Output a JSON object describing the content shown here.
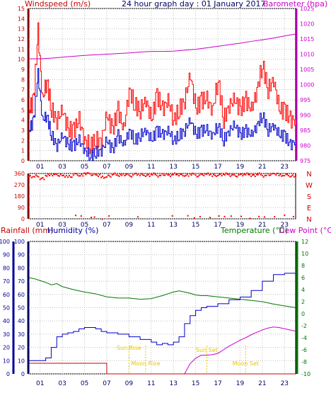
{
  "panel1": {
    "left_label": "Windspeed (m/s)",
    "title": "24 hour graph day : 01 January 2017",
    "right_label": "Barometer (hpa)",
    "left_ticks": [
      "0",
      "1",
      "2",
      "3",
      "4",
      "5",
      "6",
      "7",
      "8",
      "9",
      "10",
      "11",
      "12",
      "13",
      "14",
      "15"
    ],
    "right_ticks": [
      "975",
      "980",
      "985",
      "990",
      "995",
      "1000",
      "1005",
      "1010",
      "1015",
      "1020",
      "1025"
    ],
    "hour_ticks": [
      "01",
      "03",
      "05",
      "07",
      "09",
      "11",
      "13",
      "15",
      "17",
      "19",
      "21",
      "23"
    ]
  },
  "panel2": {
    "left_ticks": [
      "0",
      "90",
      "180",
      "270",
      "360"
    ],
    "compass": [
      "N",
      "W",
      "S",
      "E",
      "N"
    ],
    "hour_ticks": [
      "01",
      "03",
      "05",
      "07",
      "09",
      "11",
      "13",
      "15",
      "17",
      "19",
      "21",
      "23"
    ]
  },
  "panel3": {
    "rain_label": "Rainfall (mm)",
    "hum_label": "Humidity (%)",
    "temp_label": "Temperature (°C)",
    "dew_label": "Dew Point (°C)",
    "rain_ticks": [
      "0",
      "10",
      "20",
      "30",
      "40",
      "50",
      "60",
      "70",
      "80",
      "90",
      "100"
    ],
    "hum_ticks": [
      "0",
      "10",
      "20",
      "30",
      "40",
      "50",
      "60",
      "70",
      "80",
      "90",
      "100"
    ],
    "temp_ticks": [
      "-10",
      "-8",
      "-6",
      "-4",
      "-2",
      "0",
      "2",
      "4",
      "6",
      "8",
      "10",
      "12"
    ],
    "hour_ticks": [
      "01",
      "03",
      "05",
      "07",
      "09",
      "11",
      "13",
      "15",
      "17",
      "19",
      "21",
      "23"
    ],
    "annotations": [
      {
        "text": "Sun Rise",
        "hour": 9.0
      },
      {
        "text": "Moon Rise",
        "hour": 10.5
      },
      {
        "text": "Sun Set",
        "hour": 16.0
      },
      {
        "text": "Moon Set",
        "hour": 19.5
      }
    ]
  },
  "colors": {
    "wind_gust": "#ff0000",
    "wind_avg": "#0000cc",
    "barometer": "#cc00cc",
    "direction": "#ff0000",
    "temperature": "#007700",
    "dew_point": "#cc00cc",
    "humidity": "#0000cc",
    "rainfall": "#cc0000",
    "annotation": "#e6c700",
    "grid": "#c0c0c0"
  },
  "chart_data": [
    {
      "type": "line",
      "title": "24 hour graph day : 01 January 2017",
      "xlabel": "",
      "xlim": [
        0,
        24
      ],
      "ylabel": "Windspeed (m/s)",
      "ylim": [
        0,
        15
      ],
      "y2label": "Barometer (hpa)",
      "y2lim": [
        975,
        1025
      ],
      "series": [
        {
          "name": "Windspeed (m/s)",
          "role": "gust",
          "axis": "y",
          "x": [
            0,
            0.4,
            0.8,
            1.2,
            1.6,
            2,
            2.5,
            3,
            3.5,
            4,
            4.5,
            5,
            5.5,
            6,
            6.5,
            7,
            7.5,
            8,
            8.5,
            9,
            9.5,
            10,
            10.5,
            11,
            11.5,
            12,
            12.5,
            13,
            13.5,
            14,
            14.5,
            15,
            15.5,
            16,
            16.5,
            17,
            17.5,
            18,
            18.5,
            19,
            19.5,
            20,
            20.5,
            21,
            21.5,
            22,
            22.5,
            23,
            23.5,
            24
          ],
          "y": [
            5,
            6,
            12.7,
            6,
            8,
            5,
            4,
            5,
            3,
            3,
            4,
            2,
            1.5,
            2,
            2,
            4.5,
            3,
            5,
            3,
            7,
            5.5,
            5,
            6,
            4,
            6.5,
            5,
            6,
            4,
            5,
            6,
            8.5,
            5,
            6,
            6,
            5,
            8,
            4,
            5.5,
            6,
            5,
            6,
            5,
            7,
            9.5,
            7,
            8,
            5,
            5,
            4,
            4
          ]
        },
        {
          "name": "Windspeed (m/s)",
          "role": "average",
          "axis": "y",
          "x": [
            0,
            0.4,
            0.8,
            1.2,
            1.6,
            2,
            2.5,
            3,
            3.5,
            4,
            4.5,
            5,
            5.5,
            6,
            6.5,
            7,
            7.5,
            8,
            8.5,
            9,
            9.5,
            10,
            10.5,
            11,
            11.5,
            12,
            12.5,
            13,
            13.5,
            14,
            14.5,
            15,
            15.5,
            16,
            16.5,
            17,
            17.5,
            18,
            18.5,
            19,
            19.5,
            20,
            20.5,
            21,
            21.5,
            22,
            22.5,
            23,
            23.5,
            24
          ],
          "y": [
            3,
            4,
            8.5,
            4,
            4.5,
            2.5,
            1.5,
            2.5,
            1.5,
            1.5,
            2,
            1,
            0.5,
            0.8,
            1,
            2,
            1,
            2.5,
            1.5,
            3,
            2,
            2.5,
            3,
            2,
            3,
            2.5,
            3,
            2,
            2.5,
            3,
            4,
            2.5,
            3,
            3,
            2.5,
            3.5,
            2,
            3,
            3.5,
            2.5,
            3,
            2.5,
            3.5,
            4.5,
            3,
            3.5,
            2.5,
            2.5,
            1.5,
            2
          ]
        },
        {
          "name": "Barometer (hpa)",
          "axis": "y2",
          "x": [
            0,
            1,
            2,
            3,
            4,
            5,
            6,
            7,
            8,
            9,
            10,
            11,
            12,
            13,
            14,
            15,
            16,
            17,
            18,
            19,
            20,
            21,
            22,
            23,
            24
          ],
          "y": [
            1008.5,
            1008.5,
            1008.7,
            1009.0,
            1009.3,
            1009.6,
            1009.8,
            1010.0,
            1010.2,
            1010.4,
            1010.7,
            1010.9,
            1010.9,
            1011.0,
            1011.3,
            1011.6,
            1012.1,
            1012.6,
            1013.1,
            1013.6,
            1014.2,
            1014.7,
            1015.3,
            1016.0,
            1016.6
          ]
        }
      ]
    },
    {
      "type": "scatter",
      "xlim": [
        0,
        24
      ],
      "ylim": [
        0,
        360
      ],
      "series": [
        {
          "name": "Wind direction",
          "x": [
            0,
            0.5,
            1,
            1.5,
            2,
            2.5,
            3,
            3.5,
            4,
            4.5,
            5,
            5.5,
            6,
            6.5,
            7,
            7.5,
            8,
            8.5,
            9,
            9.5,
            10,
            10.5,
            11,
            11.5,
            12,
            12.5,
            13,
            13.5,
            14,
            14.5,
            15,
            15.5,
            16,
            16.5,
            17,
            17.5,
            18,
            18.5,
            19,
            19.5,
            20,
            20.5,
            21,
            21.5,
            22,
            22.5,
            23,
            23.5,
            24,
            4.2,
            4.7,
            5.6,
            5.9,
            6.6,
            7.2,
            9.8,
            12.9,
            14.3,
            14.9,
            15.4,
            16.3,
            17.1,
            17.6,
            18.2,
            19.1,
            19.9,
            20.7,
            21.2,
            22.1,
            23.0,
            23.8
          ],
          "y": [
            335,
            340,
            320,
            345,
            350,
            345,
            340,
            335,
            355,
            345,
            360,
            350,
            345,
            330,
            340,
            355,
            345,
            350,
            340,
            355,
            350,
            345,
            355,
            340,
            350,
            345,
            355,
            350,
            345,
            355,
            340,
            350,
            355,
            345,
            350,
            355,
            345,
            340,
            350,
            355,
            345,
            355,
            340,
            350,
            355,
            345,
            350,
            340,
            345,
            20,
            15,
            10,
            20,
            5,
            25,
            10,
            15,
            20,
            10,
            25,
            15,
            20,
            10,
            15,
            20,
            10,
            25,
            15,
            10,
            20,
            15
          ]
        }
      ]
    },
    {
      "type": "line",
      "xlim": [
        0,
        24
      ],
      "ylabel": "Rainfall (mm)",
      "ylim": [
        0,
        100
      ],
      "y2label": "Humidity (%)",
      "y2lim": [
        0,
        100
      ],
      "y3label": "Temperature (°C)",
      "y3lim": [
        -10,
        12
      ],
      "series": [
        {
          "name": "Temperature (°C)",
          "axis": "temp",
          "x": [
            0,
            0.5,
            1,
            1.5,
            2,
            2.5,
            3,
            4,
            5,
            6,
            7,
            8,
            9,
            10,
            11,
            12,
            12.5,
            13,
            13.5,
            14,
            14.5,
            15,
            15.5,
            16,
            17,
            18,
            19,
            20,
            21,
            22,
            23,
            24
          ],
          "y": [
            6.0,
            5.8,
            5.5,
            5.2,
            4.8,
            5.0,
            4.5,
            4.0,
            3.6,
            3.3,
            2.8,
            2.6,
            2.6,
            2.4,
            2.5,
            3.0,
            3.3,
            3.6,
            3.8,
            3.6,
            3.4,
            3.1,
            3.0,
            3.0,
            2.8,
            2.6,
            2.4,
            2.2,
            2.0,
            1.6,
            1.3,
            1.0
          ]
        },
        {
          "name": "Dew Point (°C)",
          "axis": "temp",
          "x": [
            14.0,
            14.5,
            15.0,
            15.5,
            16,
            16.5,
            17,
            17.5,
            18,
            18.5,
            19,
            19.5,
            20,
            20.5,
            21,
            21.5,
            22,
            22.5,
            23,
            23.5,
            24
          ],
          "y": [
            -10.0,
            -8.3,
            -7.4,
            -6.9,
            -6.9,
            -6.8,
            -6.6,
            -6.0,
            -5.4,
            -4.9,
            -4.4,
            -4.0,
            -3.5,
            -3.1,
            -2.7,
            -2.4,
            -2.2,
            -2.3,
            -2.5,
            -2.7,
            -2.9
          ]
        },
        {
          "name": "Humidity (%)",
          "axis": "hum",
          "x": [
            0,
            0.5,
            1,
            1.5,
            2,
            2.5,
            3,
            3.5,
            4,
            4.5,
            5,
            5.5,
            6,
            6.5,
            7,
            8,
            9,
            10,
            11,
            11.5,
            12,
            12.5,
            13,
            13.5,
            14,
            14.5,
            15,
            15.5,
            16,
            17,
            18,
            19,
            20,
            21,
            22,
            23,
            24
          ],
          "y": [
            10,
            10,
            10,
            12,
            20,
            28,
            30,
            31,
            32,
            34,
            35,
            35,
            34,
            32,
            31,
            30,
            28,
            26,
            24,
            22,
            23,
            22,
            24,
            28,
            38,
            44,
            48,
            50,
            51,
            53,
            56,
            58,
            63,
            70,
            75,
            76,
            77
          ]
        },
        {
          "name": "Rainfall (mm)",
          "axis": "rain",
          "x": [
            0,
            7,
            7,
            24
          ],
          "y": [
            8,
            8,
            0,
            0
          ]
        }
      ]
    }
  ]
}
